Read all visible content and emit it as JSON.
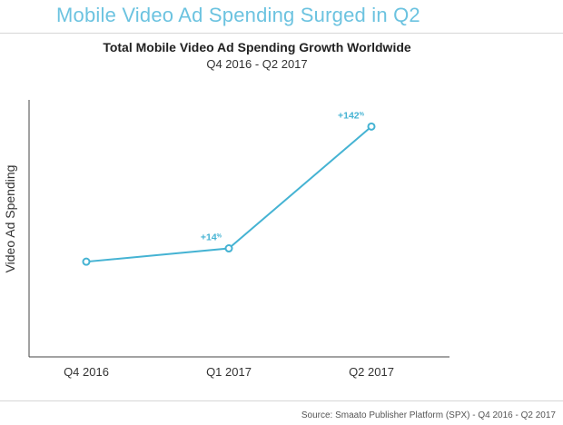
{
  "page": {
    "heading": "Mobile Video Ad Spending Surged in Q2",
    "source": "Source: Smaato Publisher Platform (SPX) - Q4 2016 - Q2 2017"
  },
  "colors": {
    "heading": "#6cc3e0",
    "series": "#45b3d3",
    "axis": "#444444",
    "rule": "#d6d6d6"
  },
  "chart_data": {
    "type": "line",
    "title": "Total Mobile Video Ad Spending Growth Worldwide",
    "subtitle": "Q4 2016 - Q2 2017",
    "xlabel": "",
    "ylabel": "Video Ad Spending",
    "categories": [
      "Q4 2016",
      "Q1 2017",
      "Q2 2017"
    ],
    "y_ticks_shown": false,
    "grid": false,
    "legend": "none",
    "series": [
      {
        "values": [
          100,
          114,
          242
        ],
        "labels": [
          "",
          "+14",
          "+142"
        ],
        "label_unit": "%"
      }
    ],
    "ylim": [
      0,
      270
    ]
  }
}
